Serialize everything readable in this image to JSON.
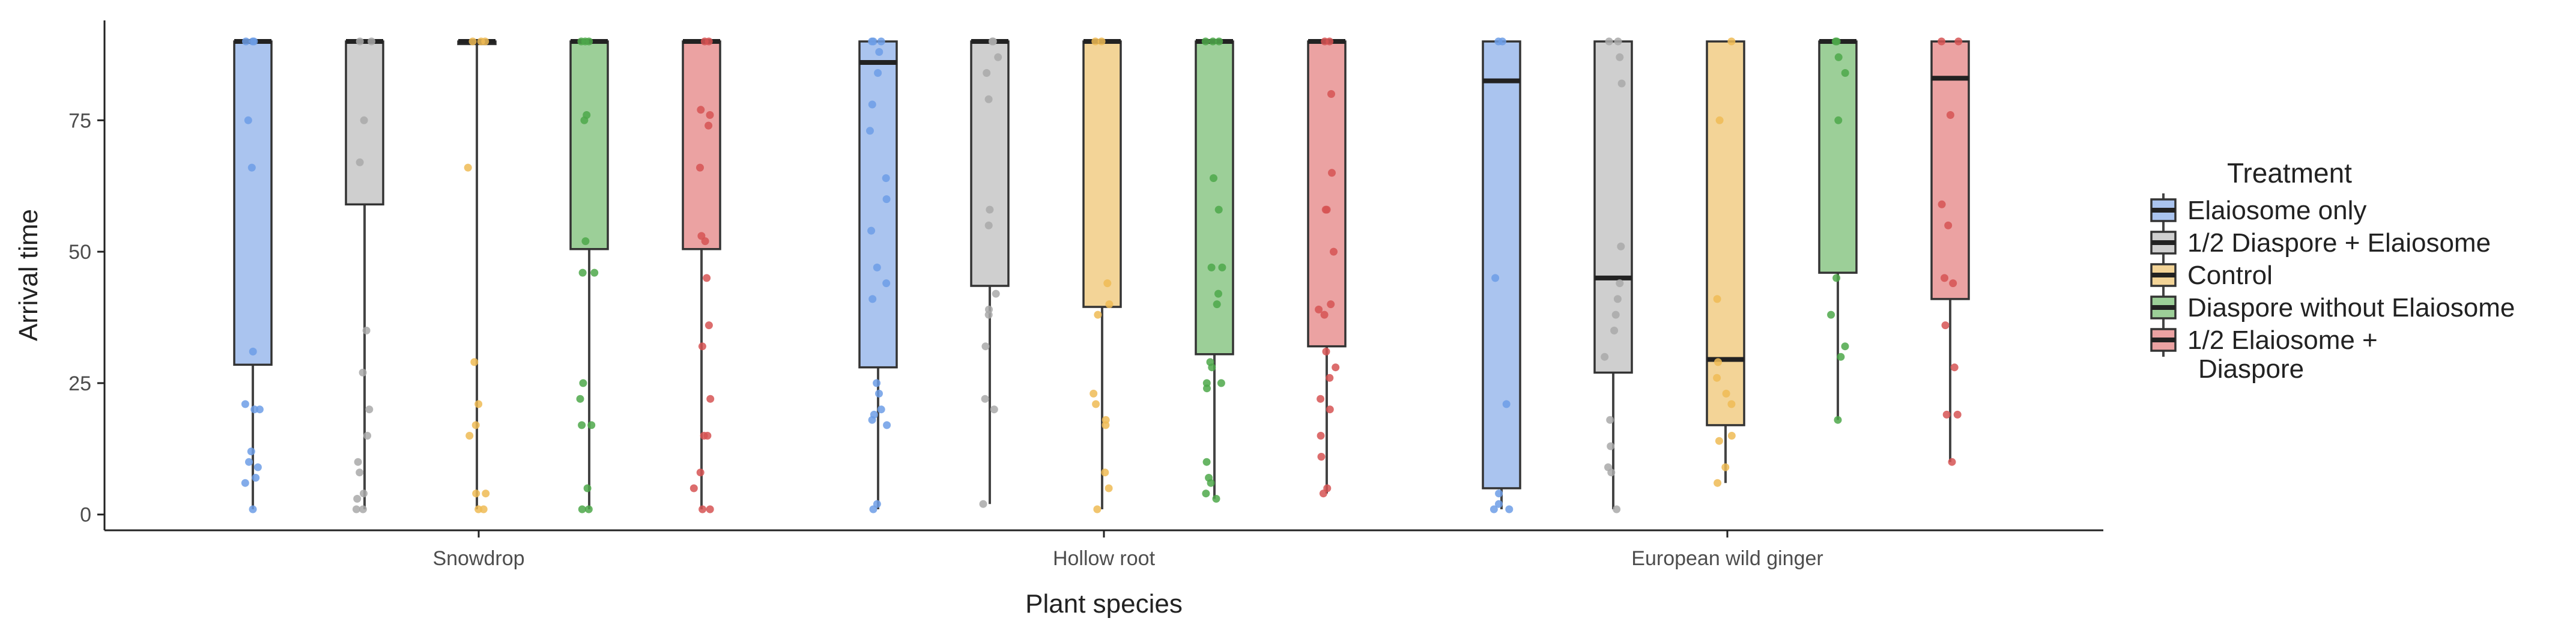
{
  "chart_data": {
    "type": "boxplot",
    "title": "",
    "xlabel": "Plant species",
    "ylabel": "Arrival time",
    "ylim": [
      -3,
      94
    ],
    "yticks": [
      0,
      25,
      50,
      75
    ],
    "grid": false,
    "legend": {
      "title": "Treatment",
      "placement": "right"
    },
    "categories": [
      "Snowdrop",
      "Hollow root",
      "European wild ginger"
    ],
    "series": [
      {
        "name": "Elaiosome only",
        "color": "#aac4ef",
        "point_color": "#6d9ee6",
        "boxes": [
          {
            "whisker_low": 1,
            "q1": 28.5,
            "median": 90,
            "q3": 90,
            "whisker_high": 90,
            "points": [
              90,
              90,
              90,
              75,
              66,
              31,
              21,
              20,
              20,
              12,
              10,
              9,
              7,
              6,
              1
            ]
          },
          {
            "whisker_low": 1,
            "q1": 28,
            "median": 86,
            "q3": 90,
            "whisker_high": 90,
            "points": [
              90,
              90,
              90,
              88,
              84,
              78,
              73,
              64,
              60,
              54,
              47,
              44,
              41,
              25,
              23,
              20,
              19,
              18,
              17,
              2,
              1
            ]
          },
          {
            "whisker_low": 1,
            "q1": 5,
            "median": 82.5,
            "q3": 90,
            "whisker_high": 90,
            "points": [
              90,
              90,
              45,
              21,
              4,
              2,
              1,
              1
            ]
          }
        ]
      },
      {
        "name": "1/2 Diaspore + Elaiosome",
        "color": "#cfcfcf",
        "point_color": "#a9a9a9",
        "boxes": [
          {
            "whisker_low": 1,
            "q1": 59,
            "median": 90,
            "q3": 90,
            "whisker_high": 90,
            "points": [
              90,
              90,
              75,
              67,
              35,
              27,
              20,
              15,
              10,
              8,
              4,
              3,
              1,
              1
            ]
          },
          {
            "whisker_low": 2,
            "q1": 43.5,
            "median": 90,
            "q3": 90,
            "whisker_high": 90,
            "points": [
              90,
              90,
              87,
              84,
              79,
              58,
              55,
              42,
              39,
              38,
              32,
              22,
              20,
              2
            ]
          },
          {
            "whisker_low": 1,
            "q1": 27,
            "median": 45,
            "q3": 90,
            "whisker_high": 90,
            "points": [
              90,
              90,
              87,
              82,
              51,
              44,
              41,
              38,
              35,
              30,
              18,
              13,
              9,
              8,
              1
            ]
          }
        ]
      },
      {
        "name": "Control",
        "color": "#f3d497",
        "point_color": "#efbb55",
        "boxes": [
          {
            "whisker_low": 1,
            "q1": 89.5,
            "median": 90,
            "q3": 90,
            "whisker_high": 90,
            "points": [
              90,
              90,
              90,
              66,
              29,
              21,
              17,
              15,
              4,
              4,
              1,
              1
            ]
          },
          {
            "whisker_low": 1,
            "q1": 39.5,
            "median": 90,
            "q3": 90,
            "whisker_high": 90,
            "points": [
              90,
              90,
              44,
              40,
              38,
              23,
              21,
              18,
              17,
              8,
              5,
              1
            ]
          },
          {
            "whisker_low": 6,
            "q1": 17,
            "median": 29.5,
            "q3": 90,
            "whisker_high": 90,
            "points": [
              90,
              75,
              41,
              29,
              26,
              23,
              21,
              15,
              14,
              9,
              6
            ]
          }
        ]
      },
      {
        "name": "Diaspore without Elaiosome",
        "color": "#9ccf98",
        "point_color": "#4ea84a",
        "boxes": [
          {
            "whisker_low": 1,
            "q1": 50.5,
            "median": 90,
            "q3": 90,
            "whisker_high": 90,
            "points": [
              90,
              90,
              90,
              76,
              75,
              52,
              46,
              46,
              25,
              22,
              17,
              17,
              5,
              1,
              1
            ]
          },
          {
            "whisker_low": 3,
            "q1": 30.5,
            "median": 90,
            "q3": 90,
            "whisker_high": 90,
            "points": [
              90,
              90,
              90,
              64,
              58,
              47,
              47,
              42,
              40,
              29,
              28,
              25,
              25,
              24,
              10,
              7,
              6,
              4,
              3
            ]
          },
          {
            "whisker_low": 18,
            "q1": 46,
            "median": 90,
            "q3": 90,
            "whisker_high": 90,
            "points": [
              90,
              90,
              87,
              84,
              75,
              45,
              38,
              32,
              30,
              18
            ]
          }
        ]
      },
      {
        "name": "1/2 Elaiosome + Diaspore",
        "color": "#eba2a2",
        "point_color": "#d65454",
        "boxes": [
          {
            "whisker_low": 1,
            "q1": 50.5,
            "median": 90,
            "q3": 90,
            "whisker_high": 90,
            "points": [
              90,
              90,
              77,
              76,
              74,
              66,
              53,
              52,
              45,
              36,
              32,
              22,
              15,
              15,
              8,
              5,
              1,
              1
            ]
          },
          {
            "whisker_low": 4,
            "q1": 32,
            "median": 90,
            "q3": 90,
            "whisker_high": 90,
            "points": [
              90,
              90,
              80,
              65,
              58,
              58,
              50,
              40,
              39,
              38,
              31,
              28,
              26,
              22,
              20,
              15,
              11,
              5,
              4
            ]
          },
          {
            "whisker_low": 10,
            "q1": 41,
            "median": 83,
            "q3": 90,
            "whisker_high": 90,
            "points": [
              90,
              90,
              76,
              59,
              55,
              45,
              44,
              36,
              28,
              19,
              19,
              10
            ]
          }
        ]
      }
    ]
  }
}
